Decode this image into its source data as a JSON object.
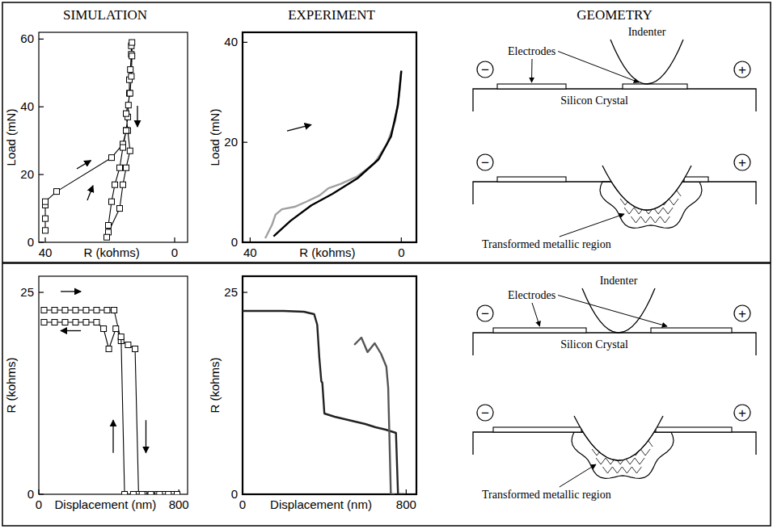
{
  "columns": [
    "SIMULATION",
    "EXPERIMENT",
    "GEOMETRY"
  ],
  "chart_data": [
    {
      "type": "line",
      "xlabel": "R (kohms)",
      "ylabel": "Load (mN)",
      "xlim": [
        42,
        -4
      ],
      "xticks": [
        40,
        0
      ],
      "ylim": [
        0,
        62
      ],
      "yticks": [
        0,
        20,
        40,
        60
      ],
      "series": [
        {
          "color": "#000000",
          "marker": "square",
          "line_style": "solid",
          "x": [
            40,
            40,
            40,
            40,
            36.5,
            19.5,
            16,
            15,
            14.5,
            14.3,
            14,
            14,
            13.7,
            13.4,
            13.4,
            13.2,
            13.2,
            13.4,
            13.8,
            15,
            14.5,
            13.8,
            15,
            16,
            17,
            20.5,
            21,
            20.5,
            19.5,
            18.5,
            17,
            16,
            15
          ],
          "values": [
            3.5,
            7,
            11,
            12,
            15,
            25,
            29,
            33,
            37,
            40.5,
            44,
            48,
            51,
            55.5,
            58,
            59,
            55,
            49,
            44,
            38,
            33,
            27,
            22,
            17,
            10,
            3,
            1.5,
            5,
            12,
            17,
            22,
            28,
            33
          ]
        }
      ]
    },
    {
      "type": "line",
      "xlabel": "R (kohms)",
      "ylabel": "Load (mN)",
      "xlim": [
        42,
        -4
      ],
      "xticks": [
        40,
        0
      ],
      "ylim": [
        0,
        42
      ],
      "yticks": [
        0,
        20,
        40
      ],
      "series": [
        {
          "color": "#a0a0a0",
          "line_style": "solid",
          "x": [
            36,
            34.2,
            33.3,
            31.6,
            28.2,
            24.9,
            21.6,
            19.3,
            16,
            11.6,
            7.1,
            3.8,
            1.6,
            0.4,
            0
          ],
          "values": [
            0.8,
            3.5,
            5.5,
            6.6,
            7.1,
            8.2,
            9.4,
            10.8,
            11.7,
            13.2,
            15.8,
            19.7,
            24.3,
            30.5,
            34.3
          ]
        },
        {
          "color": "#000000",
          "line_style": "solid",
          "x": [
            0,
            0.9,
            2.7,
            6,
            11.6,
            18.2,
            23.8,
            29.3,
            33.8
          ],
          "values": [
            34.3,
            27.4,
            21.2,
            16.6,
            12.8,
            9.7,
            7.4,
            4.3,
            1.2
          ]
        }
      ]
    },
    {
      "type": "line",
      "xlabel": "Displacement (nm)",
      "ylabel": "R (kohms)",
      "xlim": [
        0,
        850
      ],
      "xticks": [
        0,
        800
      ],
      "ylim": [
        0,
        27
      ],
      "yticks": [
        0,
        25
      ],
      "series": [
        {
          "color": "#000000",
          "marker": "square",
          "line_style": "solid",
          "x": [
            30,
            90,
            150,
            210,
            270,
            330,
            390,
            430,
            470,
            510,
            550,
            570,
            600,
            640,
            680,
            720,
            760,
            790
          ],
          "values": [
            22.8,
            22.8,
            22.8,
            22.8,
            22.8,
            22.8,
            22.8,
            22.8,
            19,
            18.5,
            18,
            0,
            0,
            0,
            0,
            0,
            0,
            0
          ]
        },
        {
          "color": "#000000",
          "marker": "square",
          "line_style": "solid",
          "x": [
            790,
            740,
            690,
            640,
            590,
            540,
            490,
            470,
            440,
            400,
            370,
            330,
            270,
            210,
            150,
            90,
            30
          ],
          "values": [
            0,
            0,
            0,
            0,
            0,
            0,
            0,
            19.5,
            20.5,
            18,
            20.5,
            21.3,
            21.3,
            21.3,
            21.3,
            21.3,
            21.3
          ]
        }
      ]
    },
    {
      "type": "line",
      "xlabel": "Displacement (nm)",
      "ylabel": "R (kohms)",
      "xlim": [
        0,
        850
      ],
      "xticks": [
        0,
        800
      ],
      "ylim": [
        0,
        27
      ],
      "yticks": [
        0,
        25
      ],
      "series": [
        {
          "color": "#222222",
          "line_style": "solid",
          "x": [
            0,
            100,
            200,
            300,
            350,
            365,
            375,
            385,
            390,
            400,
            450,
            500,
            550,
            600,
            650,
            700,
            750,
            760,
            790
          ],
          "values": [
            22.7,
            22.7,
            22.7,
            22.6,
            22.3,
            21,
            17,
            14,
            13.8,
            10,
            9.6,
            9.3,
            9,
            8.7,
            8.3,
            8,
            7.6,
            0,
            0
          ]
        },
        {
          "color": "#555555",
          "line_style": "solid",
          "x": [
            546,
            581,
            611,
            646,
            677,
            703,
            712,
            725,
            745
          ],
          "values": [
            18.5,
            19.4,
            17.6,
            18.7,
            17.4,
            15.8,
            13.2,
            0,
            0
          ]
        }
      ]
    }
  ],
  "geometry": [
    {
      "electrodes": "Electrodes",
      "indenter": "Indenter",
      "crystal": "Silicon Crystal",
      "region": "Transformed metallic region",
      "minus": "−",
      "plus": "+"
    },
    {
      "electrodes": "Electrodes",
      "indenter": "Indenter",
      "crystal": "Silicon Crystal",
      "region": "Transformed metallic region",
      "minus": "−",
      "plus": "+"
    }
  ]
}
